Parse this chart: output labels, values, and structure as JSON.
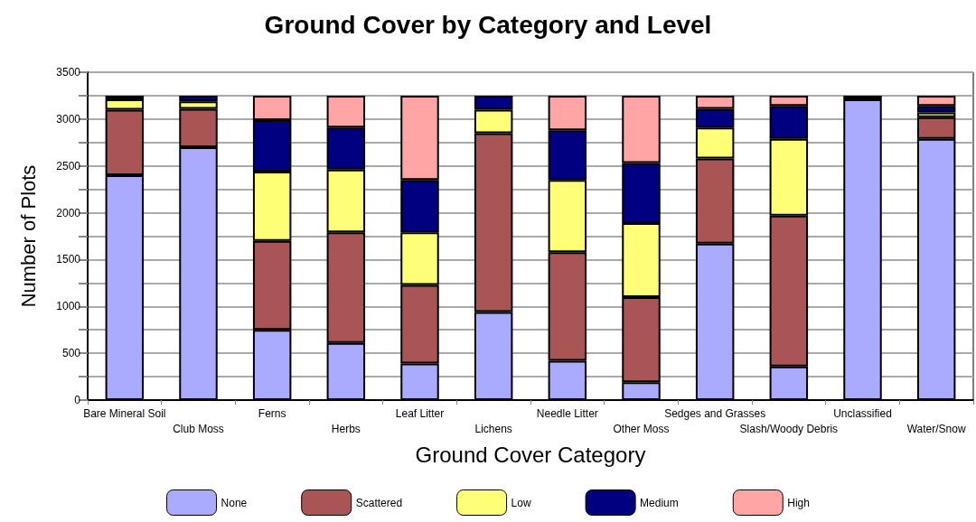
{
  "chart_data": {
    "type": "bar",
    "title": "Ground Cover by Category and Level",
    "xlabel": "Ground Cover Category",
    "ylabel": "Number of Plots",
    "categories": [
      "Bare Mineral Soil",
      "Club Moss",
      "Ferns",
      "Herbs",
      "Leaf Litter",
      "Lichens",
      "Needle Litter",
      "Other Moss",
      "Sedges and Grasses",
      "Slash/Woody Debris",
      "Unclassified",
      "Water/Snow"
    ],
    "stacked": true,
    "series": [
      {
        "name": "None",
        "color": "#aaaaff",
        "values": [
          2400,
          2700,
          750,
          610,
          390,
          940,
          420,
          190,
          1670,
          360,
          3210,
          2790
        ]
      },
      {
        "name": "Scattered",
        "color": "#aa5555",
        "values": [
          700,
          410,
          950,
          1180,
          840,
          1910,
          1160,
          910,
          910,
          1610,
          0,
          230
        ]
      },
      {
        "name": "Low",
        "color": "#ffff77",
        "values": [
          110,
          80,
          740,
          670,
          560,
          250,
          770,
          790,
          330,
          820,
          0,
          50
        ]
      },
      {
        "name": "Medium",
        "color": "#000080",
        "values": [
          40,
          60,
          550,
          450,
          560,
          150,
          530,
          640,
          200,
          350,
          40,
          70
        ]
      },
      {
        "name": "High",
        "color": "#ffa5a5",
        "values": [
          0,
          0,
          260,
          340,
          900,
          0,
          370,
          720,
          140,
          110,
          0,
          110
        ]
      }
    ],
    "ylim": [
      0,
      3500
    ],
    "yticks": [
      0,
      {
        "value": 250,
        "label": null
      },
      500,
      {
        "value": 750,
        "label": null
      },
      1000,
      {
        "value": 1250,
        "label": null
      },
      1500,
      {
        "value": 1750,
        "label": null
      },
      2000,
      {
        "value": 2250,
        "label": null
      },
      2500,
      {
        "value": 2750,
        "label": null
      },
      3000,
      {
        "value": 3250,
        "label": null
      },
      3500
    ],
    "grid": "y",
    "legend": "bottom"
  }
}
